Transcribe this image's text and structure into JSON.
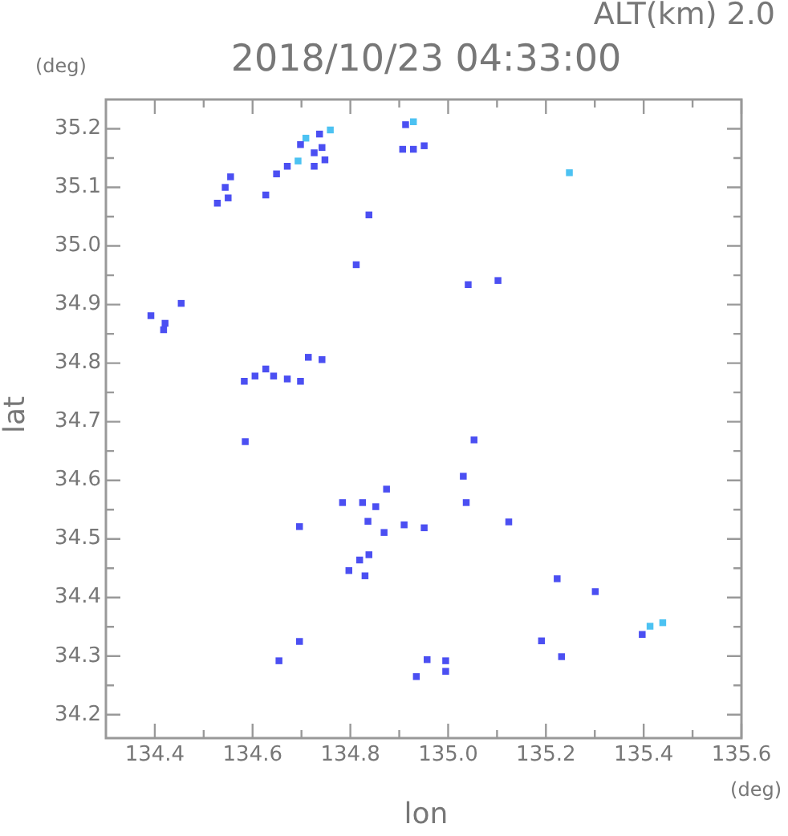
{
  "chart_data": {
    "type": "scatter",
    "title": "2018/10/23 04:33:00",
    "xlabel": "lon",
    "ylabel": "lat",
    "annotations": [
      "ALT(km) 2.0",
      "(deg)",
      "(deg)"
    ],
    "xlim": [
      134.3,
      135.6
    ],
    "ylim": [
      34.16,
      35.25
    ],
    "xticks": [
      134.4,
      {
        "value": 134.5,
        "label": null
      },
      134.6,
      {
        "value": 134.7,
        "label": null
      },
      134.8,
      {
        "value": 134.9,
        "label": null
      },
      {
        "value": 135.0,
        "label": "135.0"
      },
      {
        "value": 135.1,
        "label": null
      },
      135.2,
      {
        "value": 135.3,
        "label": null
      },
      135.4,
      {
        "value": 135.5,
        "label": null
      },
      135.6
    ],
    "yticks": [
      34.2,
      {
        "value": 34.25,
        "label": null
      },
      34.3,
      {
        "value": 34.35,
        "label": null
      },
      34.4,
      {
        "value": 34.45,
        "label": null
      },
      34.5,
      {
        "value": 34.55,
        "label": null
      },
      34.6,
      {
        "value": 34.65,
        "label": null
      },
      34.7,
      {
        "value": 34.75,
        "label": null
      },
      34.8,
      {
        "value": 34.85,
        "label": null
      },
      34.9,
      {
        "value": 34.95,
        "label": null
      },
      {
        "value": 35.0,
        "label": "35.0"
      },
      {
        "value": 35.05,
        "label": null
      },
      35.1,
      {
        "value": 35.15,
        "label": null
      },
      35.2
    ],
    "grid": false,
    "legend": false,
    "marker": "square",
    "series": [
      {
        "color": "#4b4ff2",
        "x": [
          134.528,
          134.544,
          134.555,
          134.55,
          134.627,
          134.649,
          134.671,
          134.698,
          134.737,
          134.726,
          134.742,
          134.748,
          134.726,
          134.913,
          134.907,
          134.929,
          134.951,
          134.838,
          134.812,
          135.041,
          135.102,
          134.392,
          134.421,
          134.418,
          134.454,
          134.583,
          134.605,
          134.627,
          134.643,
          134.671,
          134.698,
          134.714,
          134.742,
          134.585,
          135.053,
          135.031,
          135.037,
          134.874,
          134.784,
          134.825,
          134.852,
          134.836,
          134.869,
          134.91,
          134.951,
          134.696,
          135.124,
          134.838,
          134.819,
          134.797,
          134.83,
          135.223,
          135.301,
          135.397,
          135.191,
          135.232,
          134.696,
          134.654,
          134.935,
          134.957,
          134.995,
          134.995
        ],
        "values": [
          35.073,
          35.1,
          35.118,
          35.082,
          35.087,
          35.123,
          35.136,
          35.173,
          35.191,
          35.159,
          35.168,
          35.147,
          35.136,
          35.207,
          35.165,
          35.165,
          35.171,
          35.053,
          34.968,
          34.934,
          34.941,
          34.881,
          34.868,
          34.857,
          34.902,
          34.769,
          34.778,
          34.79,
          34.778,
          34.773,
          34.769,
          34.81,
          34.806,
          34.666,
          34.669,
          34.607,
          34.562,
          34.585,
          34.562,
          34.562,
          34.555,
          34.53,
          34.511,
          34.524,
          34.519,
          34.521,
          34.529,
          34.473,
          34.464,
          34.446,
          34.437,
          34.432,
          34.41,
          34.337,
          34.326,
          34.299,
          34.325,
          34.292,
          34.265,
          34.294,
          34.292,
          34.274
        ]
      },
      {
        "color": "#4cc2f2",
        "x": [
          134.709,
          134.759,
          134.693,
          134.929,
          135.248,
          135.413,
          135.439
        ],
        "values": [
          35.184,
          35.198,
          35.145,
          35.212,
          35.125,
          34.351,
          34.357
        ]
      }
    ]
  }
}
